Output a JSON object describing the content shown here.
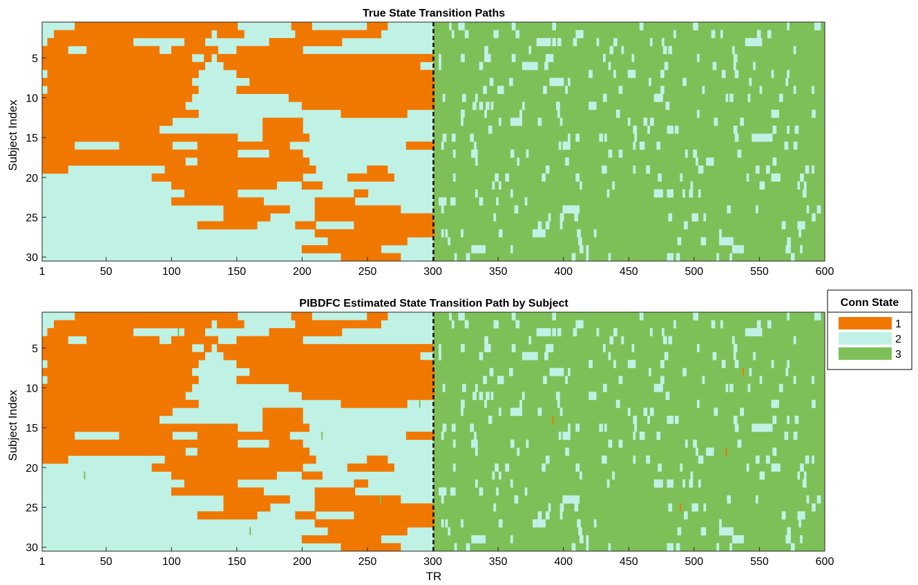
{
  "chart_data": [
    {
      "type": "heatmap",
      "title": "True State Transition Paths",
      "xlabel": "",
      "ylabel": "Subject Index",
      "xlim": [
        1,
        600
      ],
      "ylim": [
        1,
        30
      ],
      "y_reversed": true,
      "xticks": [
        1,
        50,
        100,
        150,
        200,
        250,
        300,
        350,
        400,
        450,
        500,
        550,
        600
      ],
      "yticks": [
        5,
        10,
        15,
        20,
        25,
        30
      ],
      "change_point_TR": 301,
      "subjects": 30,
      "TRs": 600,
      "state_values": [
        1,
        2,
        3
      ],
      "background_state_first_half": 2,
      "background_state_second_half": 3,
      "state1_segments": [
        {
          "subject": 1,
          "from": 26,
          "to": 150
        },
        {
          "subject": 1,
          "from": 192,
          "to": 207
        },
        {
          "subject": 1,
          "from": 250,
          "to": 265
        },
        {
          "subject": 2,
          "from": 10,
          "to": 130
        },
        {
          "subject": 2,
          "from": 135,
          "to": 155
        },
        {
          "subject": 2,
          "from": 195,
          "to": 260
        },
        {
          "subject": 3,
          "from": 5,
          "to": 70
        },
        {
          "subject": 3,
          "from": 110,
          "to": 125
        },
        {
          "subject": 3,
          "from": 175,
          "to": 230
        },
        {
          "subject": 4,
          "from": 1,
          "to": 20
        },
        {
          "subject": 4,
          "from": 35,
          "to": 90
        },
        {
          "subject": 4,
          "from": 100,
          "to": 135
        },
        {
          "subject": 4,
          "from": 150,
          "to": 200
        },
        {
          "subject": 5,
          "from": 1,
          "to": 115
        },
        {
          "subject": 5,
          "from": 125,
          "to": 130
        },
        {
          "subject": 5,
          "from": 135,
          "to": 300
        },
        {
          "subject": 6,
          "from": 1,
          "to": 125
        },
        {
          "subject": 6,
          "from": 140,
          "to": 290
        },
        {
          "subject": 7,
          "from": 5,
          "to": 120
        },
        {
          "subject": 7,
          "from": 150,
          "to": 300
        },
        {
          "subject": 8,
          "from": 1,
          "to": 115
        },
        {
          "subject": 8,
          "from": 160,
          "to": 301
        },
        {
          "subject": 9,
          "from": 5,
          "to": 120
        },
        {
          "subject": 9,
          "from": 150,
          "to": 301
        },
        {
          "subject": 10,
          "from": 1,
          "to": 115
        },
        {
          "subject": 10,
          "from": 190,
          "to": 301
        },
        {
          "subject": 11,
          "from": 1,
          "to": 110
        },
        {
          "subject": 11,
          "from": 200,
          "to": 301
        },
        {
          "subject": 12,
          "from": 1,
          "to": 120
        },
        {
          "subject": 12,
          "from": 230,
          "to": 280
        },
        {
          "subject": 13,
          "from": 1,
          "to": 100
        },
        {
          "subject": 13,
          "from": 170,
          "to": 200
        },
        {
          "subject": 14,
          "from": 1,
          "to": 90
        },
        {
          "subject": 14,
          "from": 170,
          "to": 200
        },
        {
          "subject": 15,
          "from": 1,
          "to": 150
        },
        {
          "subject": 15,
          "from": 170,
          "to": 205
        },
        {
          "subject": 16,
          "from": 1,
          "to": 25
        },
        {
          "subject": 16,
          "from": 60,
          "to": 100
        },
        {
          "subject": 16,
          "from": 120,
          "to": 190
        },
        {
          "subject": 16,
          "from": 280,
          "to": 301
        },
        {
          "subject": 17,
          "from": 1,
          "to": 150
        },
        {
          "subject": 17,
          "from": 175,
          "to": 200
        },
        {
          "subject": 18,
          "from": 1,
          "to": 110
        },
        {
          "subject": 18,
          "from": 120,
          "to": 205
        },
        {
          "subject": 19,
          "from": 1,
          "to": 20
        },
        {
          "subject": 19,
          "from": 95,
          "to": 210
        },
        {
          "subject": 19,
          "from": 250,
          "to": 265
        },
        {
          "subject": 20,
          "from": 85,
          "to": 200
        },
        {
          "subject": 20,
          "from": 235,
          "to": 270
        },
        {
          "subject": 21,
          "from": 100,
          "to": 180
        },
        {
          "subject": 21,
          "from": 200,
          "to": 215
        },
        {
          "subject": 22,
          "from": 110,
          "to": 150
        },
        {
          "subject": 22,
          "from": 240,
          "to": 250
        },
        {
          "subject": 23,
          "from": 100,
          "to": 170
        },
        {
          "subject": 23,
          "from": 210,
          "to": 240
        },
        {
          "subject": 24,
          "from": 140,
          "to": 190
        },
        {
          "subject": 24,
          "from": 210,
          "to": 275
        },
        {
          "subject": 25,
          "from": 140,
          "to": 175
        },
        {
          "subject": 25,
          "from": 210,
          "to": 300
        },
        {
          "subject": 26,
          "from": 120,
          "to": 165
        },
        {
          "subject": 26,
          "from": 195,
          "to": 210
        },
        {
          "subject": 26,
          "from": 240,
          "to": 301
        },
        {
          "subject": 27,
          "from": 210,
          "to": 301
        },
        {
          "subject": 28,
          "from": 220,
          "to": 280
        },
        {
          "subject": 29,
          "from": 200,
          "to": 260
        },
        {
          "subject": 30,
          "from": 230,
          "to": 275
        }
      ],
      "scattered_state2_segments_second_half": [
        {
          "subject": 1,
          "from": 320,
          "to": 324
        },
        {
          "subject": 1,
          "from": 500,
          "to": 503
        },
        {
          "subject": 2,
          "from": 410,
          "to": 415
        },
        {
          "subject": 3,
          "from": 380,
          "to": 390
        },
        {
          "subject": 3,
          "from": 540,
          "to": 550
        },
        {
          "subject": 5,
          "from": 340,
          "to": 344
        },
        {
          "subject": 6,
          "from": 370,
          "to": 380
        },
        {
          "subject": 7,
          "from": 450,
          "to": 455
        },
        {
          "subject": 8,
          "from": 390,
          "to": 400
        },
        {
          "subject": 9,
          "from": 350,
          "to": 354
        },
        {
          "subject": 10,
          "from": 470,
          "to": 475
        },
        {
          "subject": 11,
          "from": 420,
          "to": 425
        },
        {
          "subject": 12,
          "from": 560,
          "to": 565
        },
        {
          "subject": 13,
          "from": 360,
          "to": 368
        },
        {
          "subject": 14,
          "from": 480,
          "to": 484
        },
        {
          "subject": 15,
          "from": 545,
          "to": 560
        },
        {
          "subject": 16,
          "from": 400,
          "to": 405
        },
        {
          "subject": 17,
          "from": 330,
          "to": 334
        },
        {
          "subject": 18,
          "from": 510,
          "to": 515
        },
        {
          "subject": 19,
          "from": 430,
          "to": 433
        },
        {
          "subject": 20,
          "from": 560,
          "to": 566
        },
        {
          "subject": 22,
          "from": 470,
          "to": 476
        },
        {
          "subject": 23,
          "from": 305,
          "to": 310
        },
        {
          "subject": 24,
          "from": 400,
          "to": 412
        },
        {
          "subject": 26,
          "from": 580,
          "to": 585
        },
        {
          "subject": 27,
          "from": 380,
          "to": 386
        },
        {
          "subject": 28,
          "from": 520,
          "to": 530
        },
        {
          "subject": 29,
          "from": 330,
          "to": 340
        },
        {
          "subject": 29,
          "from": 530,
          "to": 538
        },
        {
          "subject": 30,
          "from": 480,
          "to": 484
        }
      ]
    },
    {
      "type": "heatmap",
      "title": "PIBDFC Estimated State Transition Path by Subject",
      "xlabel": "TR",
      "ylabel": "Subject Index",
      "xlim": [
        1,
        600
      ],
      "ylim": [
        1,
        30
      ],
      "y_reversed": true,
      "xticks": [
        1,
        50,
        100,
        150,
        200,
        250,
        300,
        350,
        400,
        450,
        500,
        550,
        600
      ],
      "yticks": [
        5,
        10,
        15,
        20,
        25,
        30
      ],
      "change_point_TR": 301,
      "same_as_true_paths": true,
      "state1_spots_second_half": [
        {
          "subject": 8,
          "TR": 538
        },
        {
          "subject": 14,
          "TR": 392
        },
        {
          "subject": 18,
          "TR": 525
        },
        {
          "subject": 25,
          "TR": 490
        }
      ],
      "state3_spots_first_half": [
        {
          "subject": 3,
          "TR": 105
        },
        {
          "subject": 12,
          "TR": 290
        },
        {
          "subject": 16,
          "TR": 215
        },
        {
          "subject": 21,
          "TR": 33
        },
        {
          "subject": 24,
          "TR": 260
        },
        {
          "subject": 28,
          "TR": 160
        }
      ]
    }
  ],
  "legend": {
    "title": "Conn State",
    "position": "right",
    "items": [
      {
        "label": "1",
        "color": "#f07800"
      },
      {
        "label": "2",
        "color": "#bff2e5"
      },
      {
        "label": "3",
        "color": "#7ec058"
      }
    ]
  },
  "colors": {
    "state1": "#f07800",
    "state2": "#bff2e5",
    "state3": "#7ec058",
    "change_line": "#000000"
  }
}
